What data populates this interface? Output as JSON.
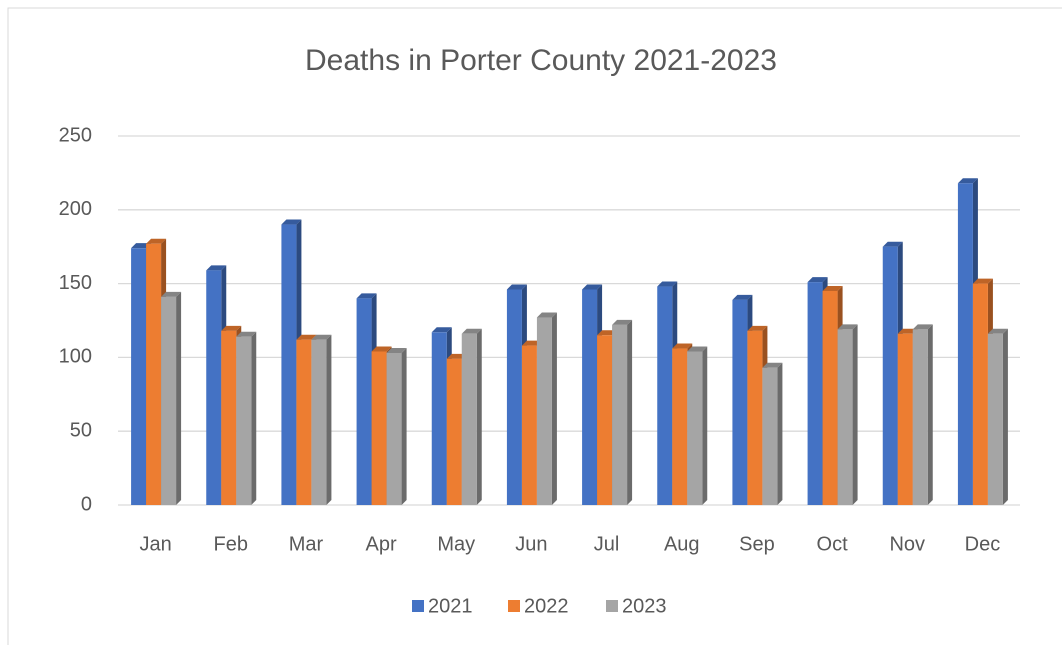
{
  "chart_data": {
    "type": "bar3d",
    "title": "Deaths in Porter County 2021-2023",
    "categories": [
      "Jan",
      "Feb",
      "Mar",
      "Apr",
      "May",
      "Jun",
      "Jul",
      "Aug",
      "Sep",
      "Oct",
      "Nov",
      "Dec"
    ],
    "series": [
      {
        "name": "2021",
        "color": "#4472c4",
        "values": [
          174,
          159,
          190,
          140,
          117,
          146,
          146,
          148,
          139,
          151,
          175,
          218
        ]
      },
      {
        "name": "2022",
        "color": "#ed7d31",
        "values": [
          177,
          118,
          112,
          104,
          99,
          108,
          115,
          106,
          118,
          145,
          116,
          150
        ]
      },
      {
        "name": "2023",
        "color": "#a5a5a5",
        "values": [
          141,
          114,
          112,
          103,
          116,
          127,
          122,
          104,
          93,
          119,
          119,
          116
        ]
      }
    ],
    "ylim": [
      0,
      250
    ],
    "yticks": [
      0,
      50,
      100,
      150,
      200,
      250
    ],
    "grid": true,
    "legend": "bottom"
  }
}
